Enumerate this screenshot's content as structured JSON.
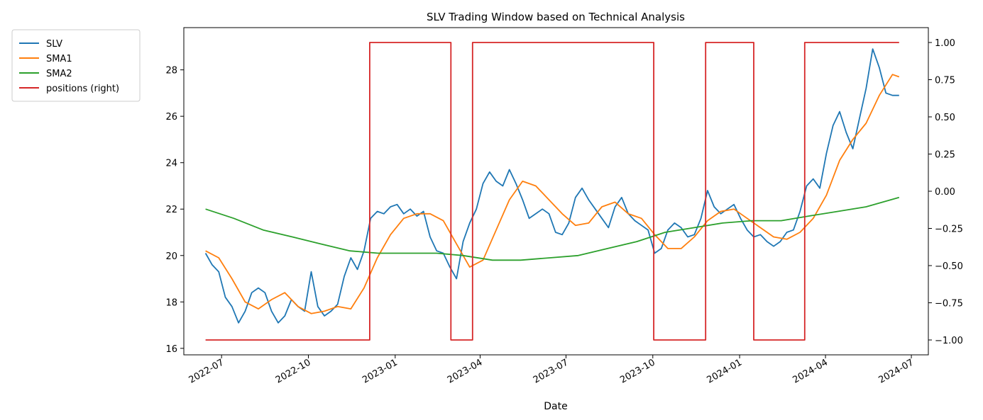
{
  "chart_data": {
    "type": "line",
    "title": "SLV Trading Window based on Technical Analysis",
    "xlabel": "Date",
    "ylabel": "",
    "xlim": [
      "2022-05-22",
      "2024-07-19"
    ],
    "ylim": [
      15.72,
      29.82
    ],
    "ylim_right": [
      -1.1,
      1.1
    ],
    "x_ticks": [
      "2022-07",
      "2022-10",
      "2023-01",
      "2023-04",
      "2023-07",
      "2023-10",
      "2024-01",
      "2024-04",
      "2024-07"
    ],
    "y_ticks": [
      16,
      18,
      20,
      22,
      24,
      26,
      28
    ],
    "y_ticks_right": [
      "1.00",
      "0.75",
      "0.50",
      "0.25",
      "0.00",
      "−0.25",
      "−0.50",
      "−0.75",
      "−1.00"
    ],
    "grid": false,
    "legend_position": "outside-top-left",
    "legend": [
      "SLV",
      "SMA1",
      "SMA2",
      "positions (right)"
    ],
    "series": [
      {
        "name": "SLV",
        "color": "#1f77b4",
        "axis": "left",
        "x": [
          "2022-06-14",
          "2022-06-21",
          "2022-06-28",
          "2022-07-05",
          "2022-07-12",
          "2022-07-19",
          "2022-07-26",
          "2022-08-02",
          "2022-08-09",
          "2022-08-16",
          "2022-08-23",
          "2022-08-30",
          "2022-09-06",
          "2022-09-13",
          "2022-09-20",
          "2022-09-27",
          "2022-10-04",
          "2022-10-11",
          "2022-10-18",
          "2022-10-25",
          "2022-11-01",
          "2022-11-08",
          "2022-11-15",
          "2022-11-22",
          "2022-11-29",
          "2022-12-06",
          "2022-12-13",
          "2022-12-20",
          "2022-12-27",
          "2023-01-03",
          "2023-01-10",
          "2023-01-17",
          "2023-01-24",
          "2023-01-31",
          "2023-02-07",
          "2023-02-14",
          "2023-02-21",
          "2023-02-28",
          "2023-03-07",
          "2023-03-14",
          "2023-03-21",
          "2023-03-28",
          "2023-04-04",
          "2023-04-11",
          "2023-04-18",
          "2023-04-25",
          "2023-05-02",
          "2023-05-09",
          "2023-05-16",
          "2023-05-23",
          "2023-05-30",
          "2023-06-06",
          "2023-06-13",
          "2023-06-20",
          "2023-06-27",
          "2023-07-04",
          "2023-07-11",
          "2023-07-18",
          "2023-07-25",
          "2023-08-01",
          "2023-08-08",
          "2023-08-15",
          "2023-08-22",
          "2023-08-29",
          "2023-09-05",
          "2023-09-12",
          "2023-09-19",
          "2023-09-26",
          "2023-10-03",
          "2023-10-10",
          "2023-10-17",
          "2023-10-24",
          "2023-10-31",
          "2023-11-07",
          "2023-11-14",
          "2023-11-21",
          "2023-11-28",
          "2023-12-05",
          "2023-12-12",
          "2023-12-19",
          "2023-12-26",
          "2024-01-02",
          "2024-01-09",
          "2024-01-16",
          "2024-01-23",
          "2024-01-30",
          "2024-02-06",
          "2024-02-13",
          "2024-02-20",
          "2024-02-27",
          "2024-03-05",
          "2024-03-12",
          "2024-03-19",
          "2024-03-26",
          "2024-04-02",
          "2024-04-09",
          "2024-04-16",
          "2024-04-23",
          "2024-04-30",
          "2024-05-07",
          "2024-05-14",
          "2024-05-21",
          "2024-05-28",
          "2024-06-04",
          "2024-06-11",
          "2024-06-18"
        ],
        "values": [
          20.1,
          19.6,
          19.3,
          18.2,
          17.8,
          17.1,
          17.6,
          18.4,
          18.6,
          18.4,
          17.6,
          17.1,
          17.4,
          18.1,
          17.8,
          17.6,
          19.3,
          17.8,
          17.4,
          17.6,
          17.9,
          19.1,
          19.9,
          19.4,
          20.2,
          21.6,
          21.9,
          21.8,
          22.1,
          22.2,
          21.8,
          22.0,
          21.7,
          21.9,
          20.8,
          20.2,
          20.1,
          19.5,
          19.0,
          20.6,
          21.4,
          22.0,
          23.1,
          23.6,
          23.2,
          23.0,
          23.7,
          23.1,
          22.4,
          21.6,
          21.8,
          22.0,
          21.8,
          21.0,
          20.9,
          21.4,
          22.5,
          22.9,
          22.4,
          22.0,
          21.6,
          21.2,
          22.1,
          22.5,
          21.8,
          21.5,
          21.3,
          21.1,
          20.1,
          20.3,
          21.1,
          21.4,
          21.2,
          20.8,
          20.9,
          21.6,
          22.8,
          22.1,
          21.8,
          22.0,
          22.2,
          21.6,
          21.1,
          20.8,
          20.9,
          20.6,
          20.4,
          20.6,
          21.0,
          21.1,
          21.9,
          23.0,
          23.3,
          22.9,
          24.4,
          25.6,
          26.2,
          25.3,
          24.6,
          25.9,
          27.2,
          28.9,
          28.1,
          27.0,
          26.9,
          26.9
        ]
      },
      {
        "name": "SMA1",
        "color": "#ff7f0e",
        "axis": "left",
        "x": [
          "2022-06-14",
          "2022-06-28",
          "2022-07-12",
          "2022-07-26",
          "2022-08-09",
          "2022-08-23",
          "2022-09-06",
          "2022-09-20",
          "2022-10-04",
          "2022-10-18",
          "2022-11-01",
          "2022-11-15",
          "2022-11-29",
          "2022-12-13",
          "2022-12-27",
          "2023-01-10",
          "2023-01-24",
          "2023-02-07",
          "2023-02-21",
          "2023-03-07",
          "2023-03-21",
          "2023-04-04",
          "2023-04-18",
          "2023-05-02",
          "2023-05-16",
          "2023-05-30",
          "2023-06-13",
          "2023-06-27",
          "2023-07-11",
          "2023-07-25",
          "2023-08-08",
          "2023-08-22",
          "2023-09-05",
          "2023-09-19",
          "2023-10-03",
          "2023-10-17",
          "2023-10-31",
          "2023-11-14",
          "2023-11-28",
          "2023-12-12",
          "2023-12-26",
          "2024-01-09",
          "2024-01-23",
          "2024-02-06",
          "2024-02-20",
          "2024-03-05",
          "2024-03-19",
          "2024-04-02",
          "2024-04-16",
          "2024-04-30",
          "2024-05-14",
          "2024-05-28",
          "2024-06-11",
          "2024-06-18"
        ],
        "values": [
          20.2,
          19.9,
          19.0,
          18.0,
          17.7,
          18.1,
          18.4,
          17.8,
          17.5,
          17.6,
          17.8,
          17.7,
          18.6,
          19.9,
          20.9,
          21.6,
          21.8,
          21.8,
          21.5,
          20.5,
          19.5,
          19.8,
          21.1,
          22.4,
          23.2,
          23.0,
          22.4,
          21.8,
          21.3,
          21.4,
          22.1,
          22.3,
          21.8,
          21.6,
          20.9,
          20.3,
          20.3,
          20.8,
          21.5,
          21.9,
          22.0,
          21.6,
          21.2,
          20.8,
          20.7,
          21.0,
          21.6,
          22.6,
          24.1,
          25.0,
          25.7,
          26.9,
          27.8,
          27.7
        ]
      },
      {
        "name": "SMA2",
        "color": "#2ca02c",
        "axis": "left",
        "x": [
          "2022-06-14",
          "2022-07-14",
          "2022-08-14",
          "2022-09-14",
          "2022-10-14",
          "2022-11-14",
          "2022-12-14",
          "2023-01-14",
          "2023-02-14",
          "2023-03-14",
          "2023-04-14",
          "2023-05-14",
          "2023-06-14",
          "2023-07-14",
          "2023-08-14",
          "2023-09-14",
          "2023-10-14",
          "2023-11-14",
          "2023-12-14",
          "2024-01-14",
          "2024-02-14",
          "2024-03-14",
          "2024-04-14",
          "2024-05-14",
          "2024-06-18"
        ],
        "values": [
          22.0,
          21.6,
          21.1,
          20.8,
          20.5,
          20.2,
          20.1,
          20.1,
          20.1,
          20.0,
          19.8,
          19.8,
          19.9,
          20.0,
          20.3,
          20.6,
          21.0,
          21.2,
          21.4,
          21.5,
          21.5,
          21.7,
          21.9,
          22.1,
          22.5
        ]
      },
      {
        "name": "positions (right)",
        "color": "#d62728",
        "axis": "right",
        "type": "step",
        "x": [
          "2022-06-14",
          "2022-12-05",
          "2022-12-05",
          "2023-03-01",
          "2023-03-01",
          "2023-03-24",
          "2023-03-24",
          "2023-10-02",
          "2023-10-02",
          "2023-11-26",
          "2023-11-26",
          "2024-01-16",
          "2024-01-16",
          "2024-03-10",
          "2024-03-10",
          "2024-06-18"
        ],
        "values": [
          -1,
          -1,
          1,
          1,
          -1,
          -1,
          1,
          1,
          -1,
          -1,
          1,
          1,
          -1,
          -1,
          1,
          1
        ]
      }
    ]
  }
}
